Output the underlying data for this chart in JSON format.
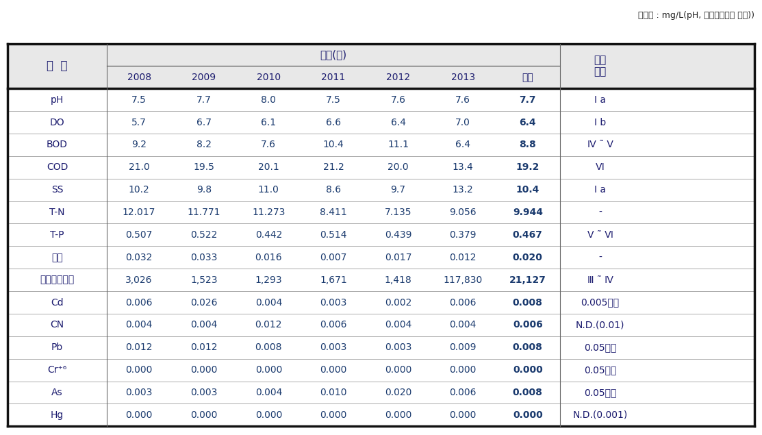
{
  "caption": "（단위 : mg/L(pH, 총대장균군수 제외))",
  "header_row1_label": "구  분",
  "header_row2_group": "연도(년)",
  "header_row2_right": "환경\n기준",
  "year_cols": [
    "2008",
    "2009",
    "2010",
    "2011",
    "2012",
    "2013",
    "평균"
  ],
  "rows": [
    {
      "label": "pH",
      "values": [
        "7.5",
        "7.7",
        "8.0",
        "7.5",
        "7.6",
        "7.6",
        "7.7"
      ],
      "avg_bold": true,
      "env": "Ⅰ a"
    },
    {
      "label": "DO",
      "values": [
        "5.7",
        "6.7",
        "6.1",
        "6.6",
        "6.4",
        "7.0",
        "6.4"
      ],
      "avg_bold": true,
      "env": "Ⅰ b"
    },
    {
      "label": "BOD",
      "values": [
        "9.2",
        "8.2",
        "7.6",
        "10.4",
        "11.1",
        "6.4",
        "8.8"
      ],
      "avg_bold": true,
      "env": "Ⅳ ˜ V"
    },
    {
      "label": "COD",
      "values": [
        "21.0",
        "19.5",
        "20.1",
        "21.2",
        "20.0",
        "13.4",
        "19.2"
      ],
      "avg_bold": true,
      "env": "Ⅵ"
    },
    {
      "label": "SS",
      "values": [
        "10.2",
        "9.8",
        "11.0",
        "8.6",
        "9.7",
        "13.2",
        "10.4"
      ],
      "avg_bold": true,
      "env": "Ⅰ a"
    },
    {
      "label": "T-N",
      "values": [
        "12.017",
        "11.771",
        "11.273",
        "8.411",
        "7.135",
        "9.056",
        "9.944"
      ],
      "avg_bold": true,
      "env": "-"
    },
    {
      "label": "T-P",
      "values": [
        "0.507",
        "0.522",
        "0.442",
        "0.514",
        "0.439",
        "0.379",
        "0.467"
      ],
      "avg_bold": true,
      "env": "V ˜ Ⅵ"
    },
    {
      "label": "페놀",
      "values": [
        "0.032",
        "0.033",
        "0.016",
        "0.007",
        "0.017",
        "0.012",
        "0.020"
      ],
      "avg_bold": true,
      "env": "-"
    },
    {
      "label": "총대장균군수",
      "values": [
        "3,026",
        "1,523",
        "1,293",
        "1,671",
        "1,418",
        "117,830",
        "21,127"
      ],
      "avg_bold": true,
      "env": "Ⅲ ˜ Ⅳ"
    },
    {
      "label": "Cd",
      "values": [
        "0.006",
        "0.026",
        "0.004",
        "0.003",
        "0.002",
        "0.006",
        "0.008"
      ],
      "avg_bold": true,
      "env": "0.005이하"
    },
    {
      "label": "CN",
      "values": [
        "0.004",
        "0.004",
        "0.012",
        "0.006",
        "0.004",
        "0.004",
        "0.006"
      ],
      "avg_bold": true,
      "env": "N.D.(0.01)"
    },
    {
      "label": "Pb",
      "values": [
        "0.012",
        "0.012",
        "0.008",
        "0.003",
        "0.003",
        "0.009",
        "0.008"
      ],
      "avg_bold": true,
      "env": "0.05이하"
    },
    {
      "label": "Cr⁺⁶",
      "values": [
        "0.000",
        "0.000",
        "0.000",
        "0.000",
        "0.000",
        "0.000",
        "0.000"
      ],
      "avg_bold": true,
      "env": "0.05이하"
    },
    {
      "label": "As",
      "values": [
        "0.003",
        "0.003",
        "0.004",
        "0.010",
        "0.020",
        "0.006",
        "0.008"
      ],
      "avg_bold": true,
      "env": "0.05이하"
    },
    {
      "label": "Hg",
      "values": [
        "0.000",
        "0.000",
        "0.000",
        "0.000",
        "0.000",
        "0.000",
        "0.000"
      ],
      "avg_bold": true,
      "env": "N.D.(0.001)"
    }
  ],
  "bg_header": "#e8e8e8",
  "bg_white": "#ffffff",
  "text_color_label": "#1a1a6e",
  "text_color_data": "#1a3a6e",
  "text_color_avg": "#1a1a6e",
  "border_color": "#222222",
  "thick_border": 2.5,
  "thin_border": 0.8
}
